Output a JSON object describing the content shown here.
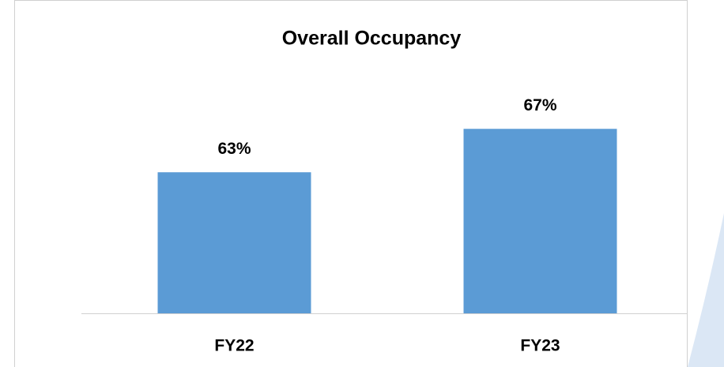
{
  "chart_data": {
    "type": "bar",
    "title": "Overall Occupancy",
    "categories": [
      "FY22",
      "FY23"
    ],
    "values": [
      63,
      67
    ],
    "value_labels": [
      "63%",
      "67%"
    ],
    "color": "#5b9bd5",
    "ylim": [
      50,
      70
    ]
  }
}
